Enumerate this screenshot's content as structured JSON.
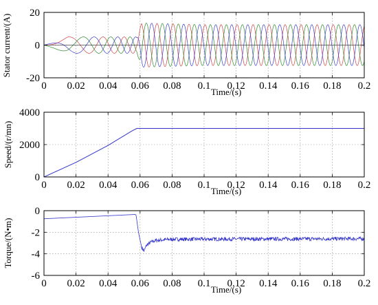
{
  "chart_data": [
    {
      "type": "line",
      "ylabel": "Stator current/(A)",
      "xlabel": "Time/(s)",
      "xlim": [
        0,
        0.2
      ],
      "ylim": [
        -20,
        20
      ],
      "xticks": [
        "0",
        "0.02",
        "0.04",
        "0.06",
        "0.08",
        "0.1",
        "0.12",
        "0.14",
        "0.16",
        "0.18",
        "0.2"
      ],
      "yticks": [
        "-20",
        "0",
        "20"
      ],
      "grid": true,
      "series": [
        {
          "color": "#d04040",
          "phase_deg": 0
        },
        {
          "color": "#2a8a2a",
          "phase_deg": 120
        },
        {
          "color": "#3a3ad0",
          "phase_deg": 240
        }
      ],
      "amplitude_points": {
        "t": [
          0,
          0.005,
          0.015,
          0.03,
          0.05,
          0.058,
          0.061,
          0.08,
          0.1,
          0.15,
          0.2
        ],
        "amp": [
          0,
          1.5,
          5,
          5,
          5,
          5,
          13.5,
          13,
          12.5,
          12.5,
          12.5
        ]
      },
      "frequency_points": {
        "t": [
          0,
          0.058,
          0.2
        ],
        "f": [
          3,
          100,
          100
        ]
      }
    },
    {
      "type": "line",
      "ylabel": "Speed/(r/mn)",
      "xlabel": "Time/(s)",
      "xlim": [
        0,
        0.2
      ],
      "ylim": [
        0,
        4000
      ],
      "xticks": [
        "0",
        "0.02",
        "0.04",
        "0.06",
        "0.08",
        "0.1",
        "0.12",
        "0.14",
        "0.16",
        "0.18",
        "0.2"
      ],
      "yticks": [
        "0",
        "2000",
        "4000"
      ],
      "grid": true,
      "series": [
        {
          "color": "#3333cc",
          "x": [
            0,
            0.02,
            0.04,
            0.055,
            0.058,
            0.06,
            0.2
          ],
          "y": [
            0,
            900,
            1950,
            2850,
            3000,
            3000,
            3000
          ]
        }
      ]
    },
    {
      "type": "line",
      "ylabel": "Torque/(N•m)",
      "xlabel": "Time/(s)",
      "xlim": [
        0,
        0.2
      ],
      "ylim": [
        -6,
        0
      ],
      "xticks": [
        "0",
        "0.02",
        "0.04",
        "0.06",
        "0.08",
        "0.1",
        "0.12",
        "0.14",
        "0.16",
        "0.18",
        "0.2"
      ],
      "yticks": [
        "-6",
        "-4",
        "-2",
        "0"
      ],
      "grid": true,
      "series": [
        {
          "color": "#3333cc",
          "x": [
            0,
            0.057,
            0.0575,
            0.059,
            0.061,
            0.0625,
            0.064,
            0.067,
            0.07,
            0.08,
            0.2
          ],
          "y": [
            -0.75,
            -0.35,
            -0.4,
            -2.0,
            -3.4,
            -3.75,
            -3.2,
            -2.9,
            -2.75,
            -2.65,
            -2.6
          ],
          "ripple": 0.35
        }
      ]
    }
  ]
}
